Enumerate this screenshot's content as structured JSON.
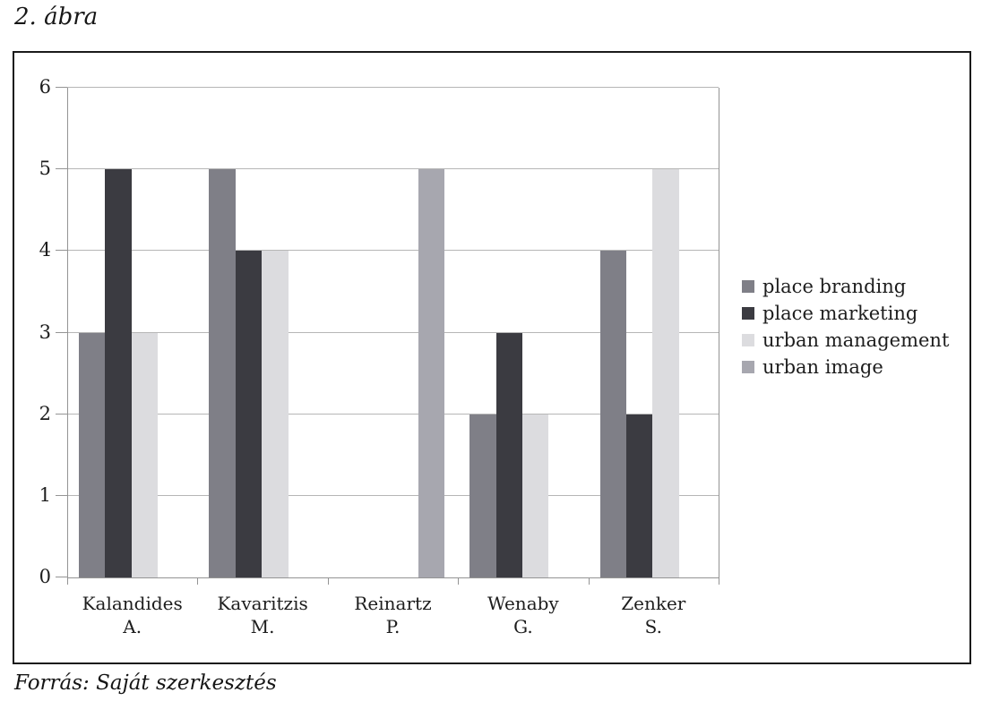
{
  "figure": {
    "title": "2. ábra",
    "source": "Forrás: Saját szerkesztés"
  },
  "chart_data": {
    "type": "bar",
    "title": "",
    "xlabel": "",
    "ylabel": "",
    "categories": [
      "Kalandides A.",
      "Kavaritzis M.",
      "Reinartz P.",
      "Wenaby G.",
      "Zenker S."
    ],
    "category_lines": [
      [
        "Kalandides",
        "A."
      ],
      [
        "Kavaritzis",
        "M."
      ],
      [
        "Reinartz",
        "P."
      ],
      [
        "Wenaby",
        "G."
      ],
      [
        "Zenker",
        "S."
      ]
    ],
    "series": [
      {
        "name": "place branding",
        "color": "#7f7f87",
        "values": [
          3,
          5,
          0,
          2,
          4
        ]
      },
      {
        "name": "place marketing",
        "color": "#3b3b41",
        "values": [
          5,
          4,
          0,
          3,
          2
        ]
      },
      {
        "name": "urban management",
        "color": "#dcdcdf",
        "values": [
          3,
          4,
          0,
          2,
          5
        ]
      },
      {
        "name": "urban image",
        "color": "#a7a7af",
        "values": [
          0,
          0,
          5,
          0,
          0
        ]
      }
    ],
    "ylim": [
      0,
      6
    ],
    "yticks": [
      0,
      1,
      2,
      3,
      4,
      5,
      6
    ],
    "grid": true,
    "legend_position": "right"
  },
  "style_colors": {
    "gridline": "#b6b6b6",
    "axis": "#949494",
    "frame": "#1a1a1a",
    "text": "#1d1d1d"
  }
}
